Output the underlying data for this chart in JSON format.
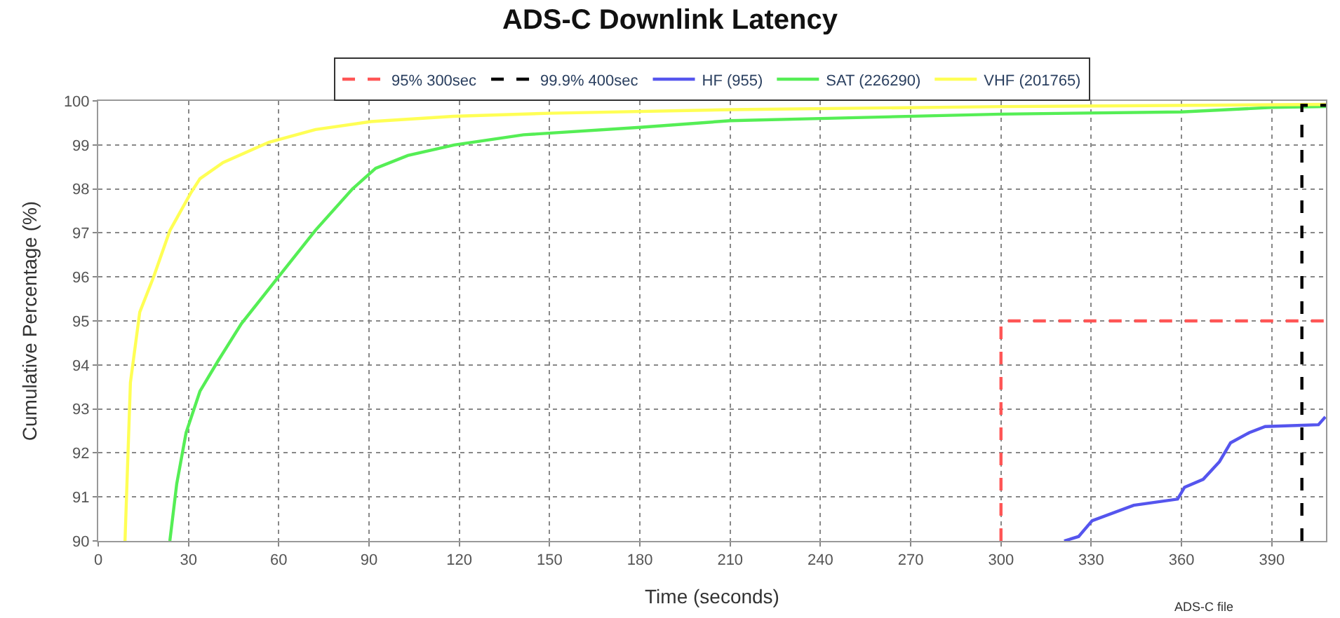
{
  "chart_data": {
    "type": "line",
    "title": "ADS-C Downlink Latency",
    "xlabel": "Time (seconds)",
    "ylabel": "Cumulative Percentage (%)",
    "xlim": [
      0,
      408
    ],
    "xticks": [
      0,
      30,
      60,
      90,
      120,
      150,
      180,
      210,
      240,
      270,
      300,
      330,
      360,
      390
    ],
    "ylim": [
      90,
      100
    ],
    "yticks": [
      90,
      91,
      92,
      93,
      94,
      95,
      96,
      97,
      98,
      99,
      100
    ],
    "grid": true,
    "legend": "top",
    "marker": "none",
    "annotations": [
      "ADS-C file"
    ],
    "series": [
      {
        "name": "95% 300sec",
        "color": "#ff5555",
        "line_style": "dashed",
        "x": [
          300,
          300,
          408
        ],
        "values": [
          90,
          95,
          95
        ]
      },
      {
        "name": "99.9% 400sec",
        "color": "#000000",
        "line_style": "dashed",
        "x": [
          400,
          400,
          408
        ],
        "values": [
          90,
          99.9,
          99.9
        ]
      },
      {
        "name": "HF (955)",
        "color": "#5555ee",
        "line_style": "solid",
        "x": [
          321,
          325.8,
          330.3,
          344.1,
          358.7,
          361,
          367.2,
          372.6,
          376.3,
          382.5,
          387.8,
          405.5,
          407.8
        ],
        "values": [
          90,
          90.1,
          90.46,
          90.81,
          90.95,
          91.22,
          91.4,
          91.8,
          92.23,
          92.46,
          92.6,
          92.64,
          92.82
        ]
      },
      {
        "name": "SAT (226290)",
        "color": "#55ee55",
        "line_style": "solid",
        "x": [
          23.8,
          26.1,
          29.2,
          33.8,
          39.9,
          47.6,
          59.9,
          72.2,
          84.5,
          92.2,
          102.9,
          118.3,
          141.3,
          180,
          210,
          240,
          300,
          360,
          390,
          408
        ],
        "values": [
          90,
          91.3,
          92.46,
          93.4,
          94.1,
          94.94,
          96.0,
          97.06,
          98.0,
          98.47,
          98.76,
          99.0,
          99.23,
          99.4,
          99.55,
          99.6,
          99.7,
          99.75,
          99.85,
          99.87
        ]
      },
      {
        "name": "VHF (201765)",
        "color": "#ffff55",
        "line_style": "solid",
        "x": [
          8.9,
          10.7,
          13.8,
          18.4,
          23.8,
          30.7,
          33.8,
          41.5,
          56.7,
          72.2,
          90.6,
          118,
          150,
          210,
          300,
          408
        ],
        "values": [
          90,
          93.6,
          95.2,
          96.0,
          97.05,
          97.9,
          98.23,
          98.6,
          99.06,
          99.35,
          99.53,
          99.65,
          99.72,
          99.8,
          99.87,
          99.92
        ]
      }
    ]
  }
}
